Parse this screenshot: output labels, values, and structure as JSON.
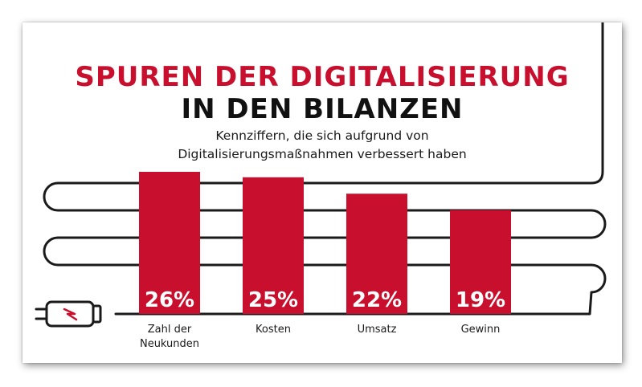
{
  "header": {
    "title_line1": "SPUREN DER DIGITALISIERUNG",
    "title_line2": "IN DEN BILANZEN",
    "subtitle_line1": "Kennziffern, die sich aufgrund von",
    "subtitle_line2": "Digitalisierungsmaßnahmen verbessert haben"
  },
  "colors": {
    "accent": "#c8102e",
    "title_dark": "#111111",
    "cable": "#1a1a1a",
    "value_text": "#ffffff"
  },
  "chart_data": {
    "type": "bar",
    "title": "SPUREN DER DIGITALISIERUNG IN DEN BILANZEN",
    "subtitle": "Kennziffern, die sich aufgrund von Digitalisierungsmaßnahmen verbessert haben",
    "categories": [
      [
        "Zahl der",
        "Neukunden"
      ],
      [
        "Kosten"
      ],
      [
        "Umsatz"
      ],
      [
        "Gewinn"
      ]
    ],
    "values": [
      26,
      25,
      22,
      19
    ],
    "value_labels": [
      "26%",
      "25%",
      "22%",
      "19%"
    ],
    "unit": "%",
    "ylim": [
      0,
      26
    ],
    "grid": false,
    "legend": "none"
  }
}
